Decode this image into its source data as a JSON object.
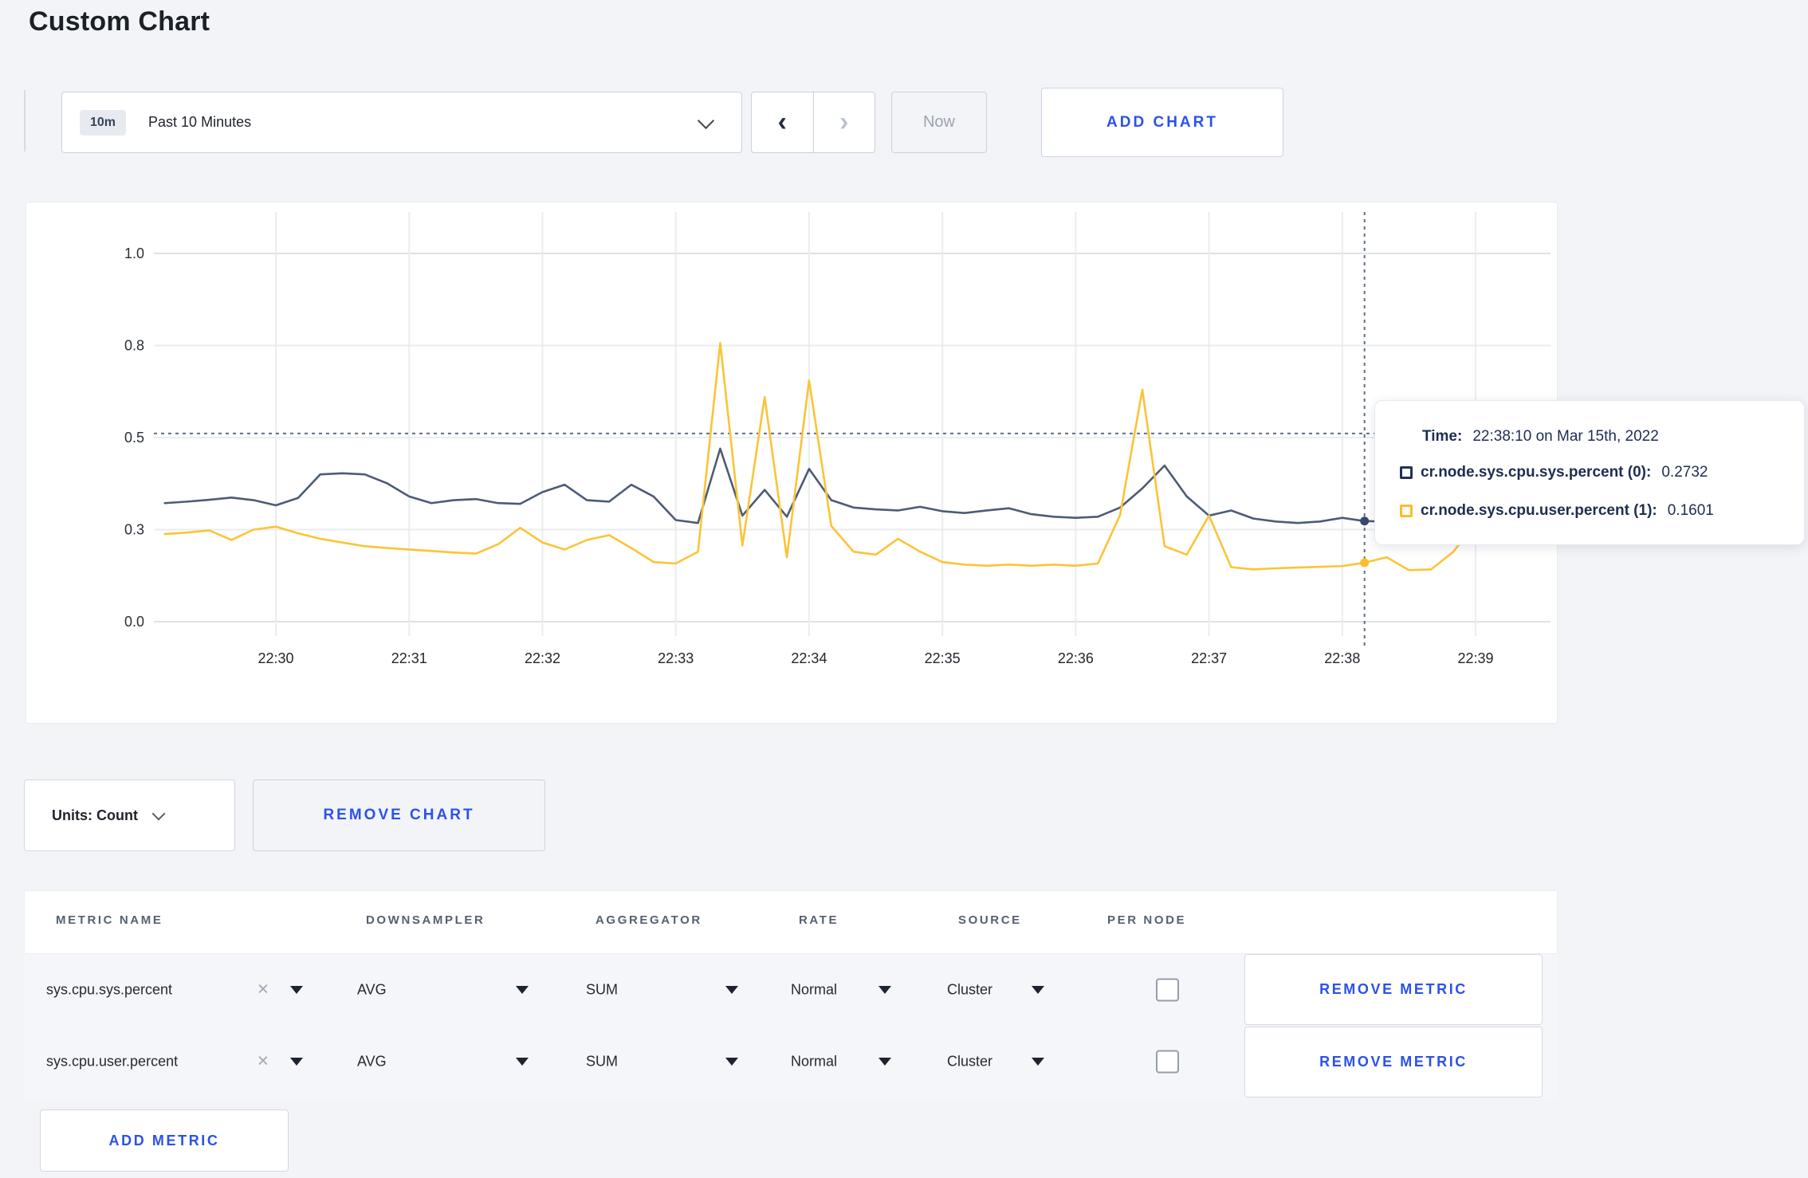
{
  "page": {
    "title": "Custom Chart",
    "background": "#f3f4f7",
    "accent": "#2b51ec"
  },
  "toolbar": {
    "range_badge": "10m",
    "range_label": "Past 10 Minutes",
    "prev_label": "‹",
    "next_label": "›",
    "now_label": "Now",
    "add_chart_label": "ADD CHART"
  },
  "chart_data": {
    "type": "line",
    "title": "",
    "xlabel": "",
    "ylabel": "",
    "grid": true,
    "x_axis": {
      "start_time": "22:29:10",
      "step_seconds": 10,
      "tick_labels": [
        "22:30",
        "22:31",
        "22:32",
        "22:33",
        "22:34",
        "22:35",
        "22:36",
        "22:37",
        "22:38",
        "22:39"
      ],
      "tick_sample_indices": [
        5,
        11,
        17,
        23,
        29,
        35,
        41,
        47,
        53,
        59
      ]
    },
    "y_axis": {
      "tick_labels": [
        "0.0",
        "0.3",
        "0.5",
        "0.8",
        "1.0"
      ],
      "tick_values": [
        0,
        0.25,
        0.5,
        0.75,
        1.0
      ],
      "range": [
        0,
        1.11
      ]
    },
    "series": [
      {
        "name": "cr.node.sys.cpu.sys.percent (0)",
        "color": "#4d5b76",
        "marker_color": "#374a6e",
        "values": [
          0.322,
          0.326,
          0.331,
          0.337,
          0.33,
          0.316,
          0.336,
          0.4,
          0.403,
          0.4,
          0.376,
          0.34,
          0.322,
          0.33,
          0.333,
          0.322,
          0.32,
          0.352,
          0.372,
          0.33,
          0.326,
          0.372,
          0.34,
          0.276,
          0.268,
          0.47,
          0.288,
          0.358,
          0.285,
          0.415,
          0.33,
          0.31,
          0.305,
          0.302,
          0.312,
          0.3,
          0.295,
          0.302,
          0.308,
          0.292,
          0.285,
          0.282,
          0.285,
          0.31,
          0.362,
          0.424,
          0.34,
          0.288,
          0.302,
          0.28,
          0.272,
          0.268,
          0.272,
          0.282,
          0.2732,
          0.272,
          0.29,
          0.293,
          0.276,
          0.274,
          0.258
        ]
      },
      {
        "name": "cr.node.sys.cpu.user.percent (1)",
        "color": "#fbc437",
        "marker_color": "#fcbe2a",
        "values": [
          0.238,
          0.242,
          0.248,
          0.222,
          0.25,
          0.258,
          0.24,
          0.225,
          0.215,
          0.205,
          0.2,
          0.196,
          0.192,
          0.188,
          0.185,
          0.21,
          0.255,
          0.215,
          0.196,
          0.222,
          0.235,
          0.2,
          0.162,
          0.158,
          0.19,
          0.757,
          0.207,
          0.61,
          0.175,
          0.655,
          0.26,
          0.19,
          0.182,
          0.225,
          0.19,
          0.162,
          0.155,
          0.152,
          0.155,
          0.152,
          0.155,
          0.152,
          0.158,
          0.29,
          0.63,
          0.205,
          0.182,
          0.288,
          0.148,
          0.142,
          0.145,
          0.147,
          0.149,
          0.151,
          0.1601,
          0.175,
          0.14,
          0.142,
          0.19,
          0.268,
          0.225
        ]
      }
    ],
    "hover": {
      "sample_index": 54,
      "line_value": 0.511,
      "values": [
        0.2732,
        0.1601
      ]
    },
    "tooltip": {
      "time_label": "Time:",
      "time_value": "22:38:10 on Mar 15th, 2022",
      "rows": [
        {
          "label": "cr.node.sys.cpu.sys.percent (0):",
          "value": "0.2732",
          "color": "#20315a"
        },
        {
          "label": "cr.node.sys.cpu.user.percent (1):",
          "value": "0.1601",
          "color": "#fdbe24"
        }
      ]
    }
  },
  "units_row": {
    "units_label": "Units: Count",
    "remove_chart_label": "REMOVE CHART"
  },
  "metrics_table": {
    "headers": [
      "METRIC NAME",
      "DOWNSAMPLER",
      "AGGREGATOR",
      "RATE",
      "SOURCE",
      "PER NODE"
    ],
    "rows": [
      {
        "metric": "sys.cpu.sys.percent",
        "downsampler": "AVG",
        "aggregator": "SUM",
        "rate": "Normal",
        "source": "Cluster",
        "per_node_checked": false,
        "remove_label": "REMOVE METRIC"
      },
      {
        "metric": "sys.cpu.user.percent",
        "downsampler": "AVG",
        "aggregator": "SUM",
        "rate": "Normal",
        "source": "Cluster",
        "per_node_checked": false,
        "remove_label": "REMOVE METRIC"
      }
    ],
    "add_metric_label": "ADD METRIC"
  }
}
